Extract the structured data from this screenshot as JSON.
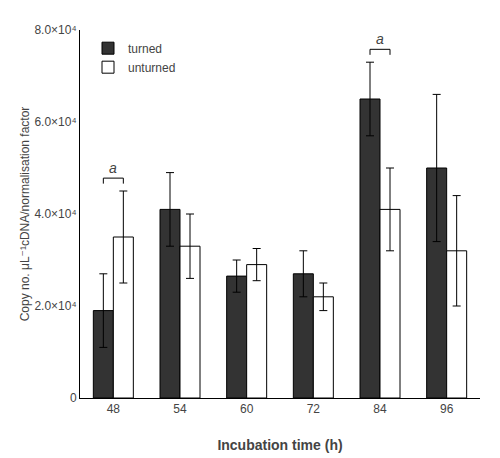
{
  "chart_data": {
    "type": "bar",
    "categories": [
      "48",
      "54",
      "60",
      "72",
      "84",
      "96"
    ],
    "series": [
      {
        "name": "turned",
        "color": "#333333",
        "values": [
          19000,
          41000,
          26500,
          27000,
          65000,
          50000
        ],
        "errors": [
          8000,
          8000,
          3500,
          5000,
          8000,
          16000
        ]
      },
      {
        "name": "unturned",
        "color": "#ffffff",
        "values": [
          35000,
          33000,
          29000,
          22000,
          41000,
          32000
        ],
        "errors": [
          10000,
          7000,
          3500,
          3000,
          9000,
          12000
        ]
      }
    ],
    "xlabel": "Incubation time (h)",
    "ylabel": "Copy no. μL⁻¹cDNA/normalisation factor",
    "ylim": [
      0,
      80000
    ],
    "yticks": [
      0,
      {
        "value": 20000,
        "label": "2.0×10⁴"
      },
      {
        "value": 40000,
        "label": "4.0×10⁴"
      },
      {
        "value": 60000,
        "label": "6.0×10⁴"
      },
      {
        "value": 80000,
        "label": "8.0×10⁴"
      }
    ],
    "annotations": [
      {
        "text": "a",
        "category": "48"
      },
      {
        "text": "a",
        "category": "84"
      }
    ],
    "grid": false,
    "legend": "upper left"
  }
}
